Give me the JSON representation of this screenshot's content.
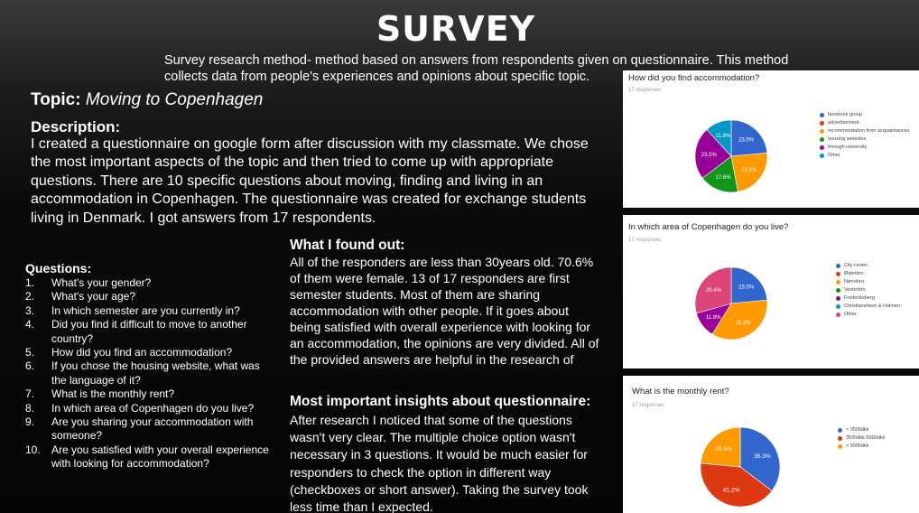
{
  "title": "SURVEY",
  "intro": "Survey research method- method based on answers from respondents given on questionnaire. This method collects data from people's experiences and opinions about specific topic.",
  "topic": {
    "label": "Topic:",
    "value": " Moving to Copenhagen"
  },
  "description": {
    "heading": "Description:",
    "text": "I created a questionnaire on google form after discussion with my classmate. We chose the most important aspects of the topic and then tried to come up with appropriate questions. There are 10 specific questions about moving, finding and living in an accommodation in Copenhagen. The questionnaire was created for exchange students living in Denmark. I got answers from 17 respondents."
  },
  "questions": {
    "heading": "Questions:",
    "items": [
      {
        "num": "1.",
        "text": "What's your gender?"
      },
      {
        "num": "2.",
        "text": "What's your age?"
      },
      {
        "num": "3.",
        "text": "In which semester are you currently in?"
      },
      {
        "num": "4.",
        "text": "Did you find it difficult to move to another country?"
      },
      {
        "num": "5.",
        "text": "How did you find an accommodation?"
      },
      {
        "num": "6.",
        "text": "If you chose the housing website, what was the language of it?"
      },
      {
        "num": "7.",
        "text": "What is the monthly rent?"
      },
      {
        "num": "8.",
        "text": "In which area of Copenhagen do you live?"
      },
      {
        "num": "9.",
        "text": "Are you sharing your accommodation with someone?"
      },
      {
        "num": "10.",
        "text": "Are you satisfied with your overall experience with looking for accommodation?"
      }
    ]
  },
  "found": {
    "heading": "What I found out:",
    "text": "All of the responders are less than 30years old. 70.6% of them were female. 13 of 17 responders are first semester students. Most of them are sharing accommodation with other people. If it goes about being satisfied with overall experience with looking for an accommodation, the opinions are very divided. All of the provided answers are helpful in the research of"
  },
  "insights": {
    "heading": "Most important insights about questionnaire:",
    "text": "After research I noticed that some of the questions wasn't very clear. The multiple choice option wasn't necessary in 3 questions. It would be much easier for responders to check the option in different way (checkboxes or short answer). Taking the survey took less time than I expected."
  },
  "chart_data": [
    {
      "type": "pie",
      "title": "How did you find accommodation?",
      "subtitle": "17 responses",
      "categories": [
        "facebook group",
        "advertisement",
        "recommendation from acquaintances",
        "housing websites",
        "through university",
        "Other"
      ],
      "values": [
        23.5,
        0,
        23.5,
        17.6,
        23.5,
        11.8
      ],
      "labels": [
        "23.5%",
        "",
        "23.5%",
        "17.6%",
        "23.5%",
        "11.8%"
      ],
      "colors": [
        "#3366cc",
        "#dc3912",
        "#ff9900",
        "#109618",
        "#990099",
        "#0099c6"
      ],
      "start_angle": 90,
      "legend": "right"
    },
    {
      "type": "pie",
      "title": "In which area of Copenhagen do you live?",
      "subtitle": "17 responses",
      "categories": [
        "City center",
        "Østerbro",
        "Nørrebro",
        "Vesterbro",
        "Frederiksberg",
        "Christianshavn & Holmen",
        "Other"
      ],
      "values": [
        23.5,
        0,
        35.3,
        0,
        11.8,
        0,
        29.4
      ],
      "labels": [
        "23.5%",
        "",
        "35.3%",
        "",
        "11.8%",
        "",
        "29.4%"
      ],
      "colors": [
        "#3366cc",
        "#dc3912",
        "#ff9900",
        "#109618",
        "#990099",
        "#0099c6",
        "#dd4477"
      ],
      "start_angle": 90,
      "legend": "right"
    },
    {
      "type": "pie",
      "title": "What is the monthly rent?",
      "subtitle": "17 responses",
      "categories": [
        "< 3500dkk",
        "3500dkk-5000dkk",
        "> 5000dkk"
      ],
      "values": [
        35.3,
        41.2,
        23.5
      ],
      "labels": [
        "35.3%",
        "41.2%",
        "23.5%"
      ],
      "colors": [
        "#3366cc",
        "#dc3912",
        "#ff9900"
      ],
      "start_angle": 90,
      "legend": "right"
    }
  ]
}
